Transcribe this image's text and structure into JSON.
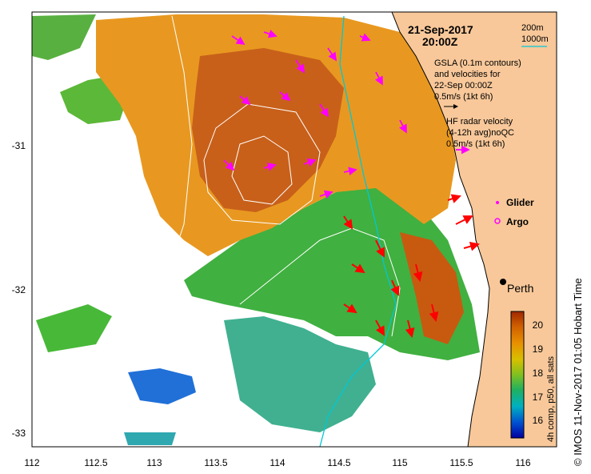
{
  "map": {
    "date": "21-Sep-2017",
    "time": "20:00Z",
    "isobath_shallow": "200m",
    "isobath_deep": "1000m",
    "gsla_line1": "GSLA (0.1m contours)",
    "gsla_line2": "and velocities for",
    "gsla_line3": "22-Sep 00:00Z",
    "gsla_scale": "0.5m/s (1kt 6h)",
    "hf_line1": "HF radar velocity",
    "hf_line2": "(4-12h avg)noQC",
    "hf_scale": "0.5m/s (1kt 6h)",
    "glider_label": "Glider",
    "argo_label": "Argo",
    "city_label": "Perth",
    "colorbar_title": "4h comp, p50, all sats",
    "colorbar_ticks": [
      "20",
      "19",
      "18",
      "17",
      "16"
    ],
    "credit": "© IMOS 11-Nov-2017 01:05 Hobart Time",
    "x_ticks": [
      "112",
      "112.5",
      "113",
      "113.5",
      "114",
      "114.5",
      "115",
      "115.5",
      "116"
    ],
    "y_ticks": [
      "-31",
      "-32",
      "-33"
    ],
    "colors": {
      "land": "#f8c89a",
      "gsla_arrows": "#000000",
      "hf_arrows": "#ff00ff",
      "current_arrows": "#ff0000",
      "isobath_200": "#00c8d8",
      "contours": "#ffffff"
    }
  }
}
